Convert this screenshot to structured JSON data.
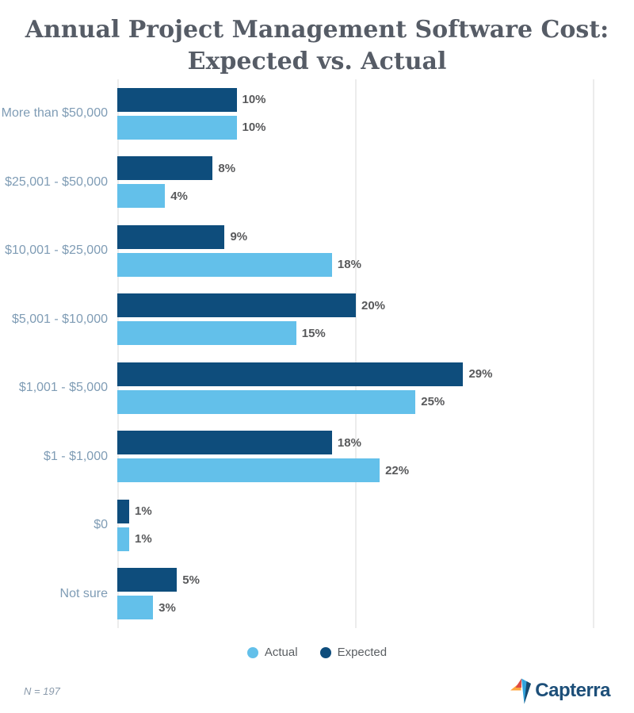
{
  "title": {
    "line1": "Annual Project Management Software Cost:",
    "line2": "Expected vs. Actual"
  },
  "legend": {
    "position": "bottom-center",
    "items": [
      {
        "label": "Actual",
        "color": "#63c0ea"
      },
      {
        "label": "Expected",
        "color": "#0e4d7c"
      }
    ]
  },
  "footer": {
    "note": "N = 197",
    "brand": "Capterra"
  },
  "colors": {
    "expected": "#0e4d7c",
    "actual": "#63c0ea",
    "title": "#565c66",
    "category_label": "#7f9cb5",
    "value_label": "#58595b",
    "gridline": "#ececec",
    "legend_text": "#5a5e62",
    "note": "#8a9aab",
    "brand_blue": "#1d4f79",
    "logo_orange": "#ffa63d",
    "logo_red": "#dd4a43",
    "logo_light_blue": "#33a3dc",
    "logo_navy": "#17496f"
  },
  "chart_data": {
    "type": "bar",
    "orientation": "horizontal",
    "title": "Annual Project Management Software Cost: Expected vs. Actual",
    "sample_size": "N = 197",
    "categories": [
      "More than $50,000",
      "$25,001 - $50,000",
      "$10,001 - $25,000",
      "$5,001 - $10,000",
      "$1,001 - $5,000",
      "$1 - $1,000",
      "$0",
      "Not sure"
    ],
    "series": [
      {
        "name": "Expected",
        "color": "#0e4d7c",
        "row_position": "top",
        "values": [
          10,
          8,
          9,
          20,
          29,
          18,
          1,
          5
        ],
        "labels": [
          "10%",
          "8%",
          "9%",
          "20%",
          "29%",
          "18%",
          "1%",
          "5%"
        ]
      },
      {
        "name": "Actual",
        "color": "#63c0ea",
        "row_position": "bottom",
        "values": [
          10,
          4,
          18,
          15,
          25,
          22,
          1,
          3
        ],
        "labels": [
          "10%",
          "4%",
          "18%",
          "15%",
          "25%",
          "22%",
          "1%",
          "3%"
        ]
      }
    ],
    "xlim": [
      0,
      40
    ],
    "gridlines_at": [
      0,
      20,
      40
    ],
    "value_unit": "%",
    "grid": true,
    "legend_position": "bottom"
  }
}
